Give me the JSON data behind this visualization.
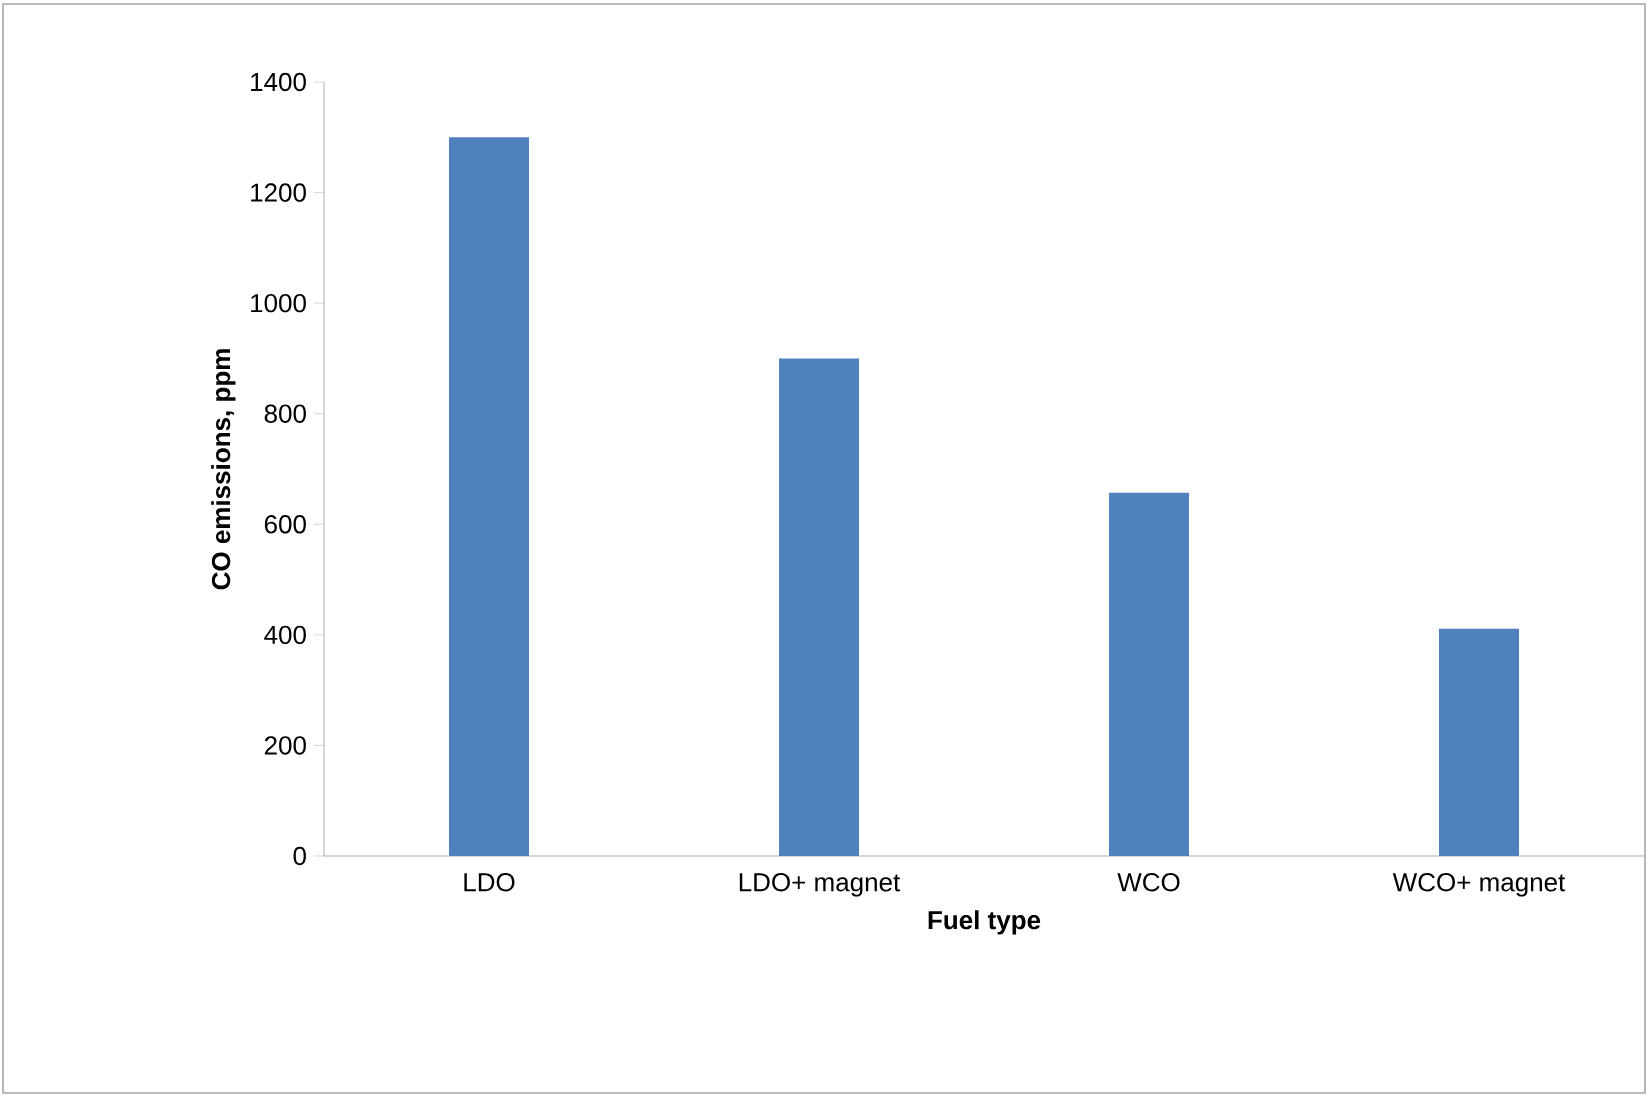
{
  "chart_data": {
    "type": "bar",
    "xlabel": "Fuel type",
    "ylabel": "CO emissions, ppm",
    "categories": [
      "LDO",
      "LDO+ magnet",
      "WCO",
      "WCO+ magnet"
    ],
    "values": [
      1300,
      900,
      657,
      411
    ],
    "color": "#4f81bd",
    "ylim": [
      0,
      1400
    ],
    "yticks": [
      0,
      200,
      400,
      600,
      800,
      1000,
      1200,
      1400
    ]
  }
}
